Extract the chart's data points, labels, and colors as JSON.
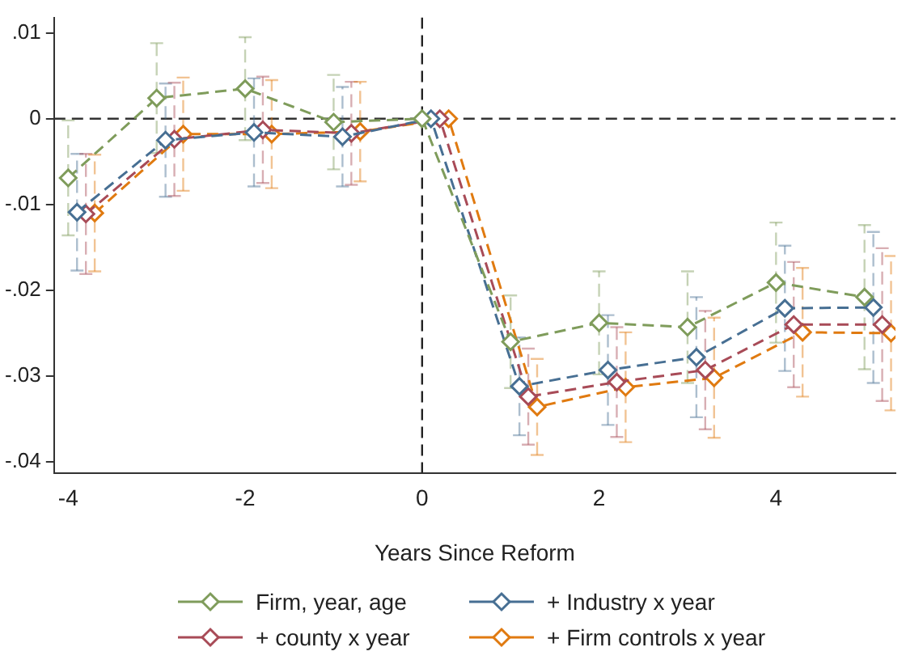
{
  "chart_data": {
    "type": "line",
    "xlabel": "Years Since Reform",
    "xlim": [
      -4.16,
      5.35
    ],
    "xticks": [
      -4,
      -2,
      0,
      2,
      4
    ],
    "ylim": [
      -0.0413,
      0.0118
    ],
    "yticks": [
      {
        "value": -0.04,
        "label": "-.04"
      },
      {
        "value": -0.03,
        "label": "-.03"
      },
      {
        "value": -0.02,
        "label": "-.02"
      },
      {
        "value": -0.01,
        "label": "-.01"
      },
      0,
      {
        "value": 0.01,
        "label": ".01"
      }
    ],
    "grid": false,
    "legend": "bottom",
    "marker": "diamond",
    "line_style": "dashed",
    "ref_lines": [
      {
        "axis": "y",
        "value": 0,
        "color": "#333333",
        "line_style": "dashed"
      },
      {
        "axis": "x",
        "value": 0,
        "color": "#222222",
        "line_style": "dashed"
      }
    ],
    "series": [
      {
        "name": "Firm, year, age",
        "color": "#7f9c5b",
        "x": [
          -4,
          -3,
          -2,
          -1,
          0,
          1,
          2,
          3,
          4,
          5
        ],
        "values": [
          -0.0069,
          0.0024,
          0.0035,
          -0.0004,
          0,
          -0.026,
          -0.0238,
          -0.0243,
          -0.0191,
          -0.0208
        ],
        "errors": [
          0.0067,
          0.0064,
          0.006,
          0.0055,
          null,
          0.0054,
          0.006,
          0.0065,
          0.007,
          0.0084
        ]
      },
      {
        "name": "+ Industry x year",
        "color": "#476f93",
        "x": [
          -3.9,
          -2.9,
          -1.9,
          -0.9,
          0.1,
          1.1,
          2.1,
          3.1,
          4.1,
          5.1
        ],
        "values": [
          -0.0109,
          -0.0025,
          -0.0016,
          -0.0021,
          0,
          -0.0312,
          -0.0293,
          -0.0278,
          -0.0221,
          -0.022
        ],
        "errors": [
          0.0068,
          0.0066,
          0.0063,
          0.0058,
          null,
          0.0057,
          0.0064,
          0.007,
          0.0073,
          0.0088
        ]
      },
      {
        "name": "+ county x year",
        "color": "#a84b57",
        "x": [
          -3.8,
          -2.8,
          -1.8,
          -0.8,
          0.2,
          1.2,
          2.2,
          3.2,
          4.2,
          5.2
        ],
        "values": [
          -0.0111,
          -0.0024,
          -0.0013,
          -0.0017,
          0,
          -0.0324,
          -0.0307,
          -0.0293,
          -0.024,
          -0.024
        ],
        "errors": [
          0.007,
          0.0066,
          0.0062,
          0.006,
          null,
          0.0056,
          0.0064,
          0.0069,
          0.0073,
          0.0089
        ]
      },
      {
        "name": "+ Firm controls x year",
        "color": "#e07a10",
        "x": [
          -3.7,
          -2.7,
          -1.7,
          -0.7,
          0.3,
          1.3,
          2.3,
          3.3,
          4.3,
          5.3
        ],
        "values": [
          -0.011,
          -0.0018,
          -0.0018,
          -0.0015,
          0,
          -0.0336,
          -0.0313,
          -0.0302,
          -0.0249,
          -0.025
        ],
        "errors": [
          0.0068,
          0.0066,
          0.0063,
          0.0058,
          null,
          0.0056,
          0.0064,
          0.007,
          0.0075,
          0.009
        ]
      }
    ]
  }
}
